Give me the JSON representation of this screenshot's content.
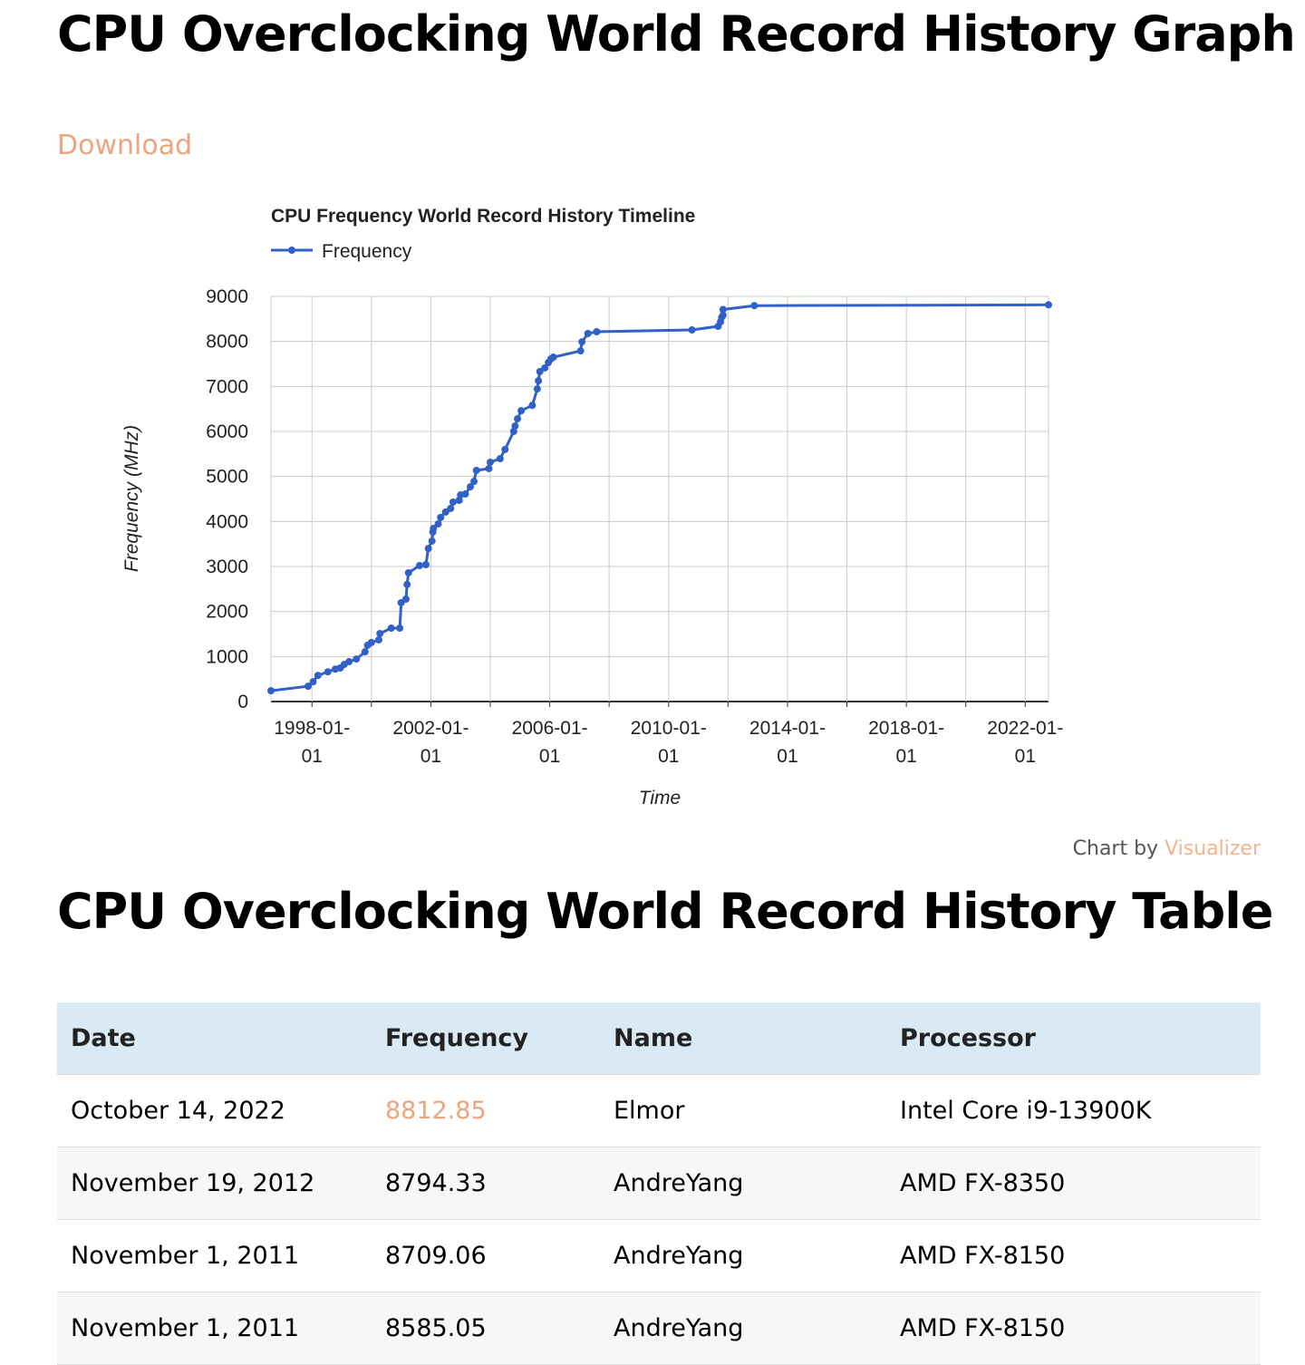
{
  "header": {
    "title": "CPU Overclocking World Record History Graph",
    "download": "Download"
  },
  "chart_data": {
    "type": "line",
    "title": "CPU Frequency World Record History Timeline",
    "x_label": "Time",
    "y_label": "Frequency (MHz)",
    "x": [
      "1996-08-15",
      "1997-11-15",
      "1998-01-15",
      "1998-03-15",
      "1998-07-15",
      "1998-10-15",
      "1998-12-15",
      "1999-02-01",
      "1999-04-01",
      "1999-07-01",
      "1999-10-15",
      "1999-11-15",
      "2000-01-01",
      "2000-04-01",
      "2000-04-15",
      "2000-09-01",
      "2000-12-15",
      "2001-01-01",
      "2001-03-01",
      "2001-03-15",
      "2001-04-01",
      "2001-08-15",
      "2001-11-01",
      "2001-12-01",
      "2002-01-15",
      "2002-01-25",
      "2002-02-01",
      "2002-04-01",
      "2002-05-01",
      "2002-07-01",
      "2002-09-01",
      "2002-10-01",
      "2002-12-15",
      "2003-01-01",
      "2003-03-01",
      "2003-05-01",
      "2003-06-15",
      "2003-07-15",
      "2003-12-15",
      "2004-01-01",
      "2004-05-01",
      "2004-07-01",
      "2004-10-15",
      "2004-11-01",
      "2004-12-01",
      "2005-01-15",
      "2005-06-01",
      "2005-08-01",
      "2005-08-15",
      "2005-09-01",
      "2005-11-01",
      "2005-12-15",
      "2006-01-15",
      "2006-02-15",
      "2007-01-15",
      "2007-02-01",
      "2007-04-15",
      "2007-08-01",
      "2010-10-15",
      "2011-09-01",
      "2011-10-01",
      "2011-10-15",
      "2011-11-01",
      "2011-11-01",
      "2012-11-19",
      "2022-10-14"
    ],
    "series": [
      {
        "name": "Frequency",
        "color": "#3060c8",
        "values": [
          240,
          340,
          440,
          580,
          660,
          720,
          745,
          825,
          885,
          945,
          1105,
          1250,
          1310,
          1370,
          1510,
          1630,
          1630,
          2195,
          2275,
          2600,
          2860,
          3020,
          3040,
          3400,
          3565,
          3765,
          3845,
          3945,
          4090,
          4210,
          4290,
          4430,
          4470,
          4590,
          4610,
          4770,
          4890,
          5135,
          5175,
          5315,
          5395,
          5600,
          6000,
          6120,
          6280,
          6460,
          6580,
          6945,
          7125,
          7330,
          7410,
          7530,
          7610,
          7650,
          7790,
          7990,
          8175,
          8215,
          8255,
          8335,
          8435,
          8535,
          8585.05,
          8709.06,
          8794.33,
          8812.85
        ]
      }
    ],
    "xlim": [
      "1996-08-15",
      "2022-10-14"
    ],
    "xticks": [
      "1998-01-01",
      "2002-01-01",
      "2006-01-01",
      "2010-01-01",
      "2014-01-01",
      "2018-01-01",
      "2022-01-01"
    ],
    "xminorticks": [
      "2000-01-01",
      "2004-01-01",
      "2008-01-01",
      "2012-01-01",
      "2016-01-01",
      "2020-01-01"
    ],
    "ylim": [
      0,
      9000
    ],
    "yticks": [
      0,
      1000,
      2000,
      3000,
      4000,
      5000,
      6000,
      7000,
      8000,
      9000
    ],
    "grid": true,
    "legend": "top-left"
  },
  "credit": {
    "prefix": "Chart by",
    "link": "Visualizer"
  },
  "table_title": "CPU Overclocking World Record History Table",
  "table": {
    "columns": [
      "Date",
      "Frequency",
      "Name",
      "Processor"
    ],
    "rows": [
      [
        "October 14, 2022",
        "8812.85",
        "Elmor",
        "Intel Core i9-13900K"
      ],
      [
        "November 19, 2012",
        "8794.33",
        "AndreYang",
        "AMD FX-8350"
      ],
      [
        "November 1, 2011",
        "8709.06",
        "AndreYang",
        "AMD FX-8150"
      ],
      [
        "November 1, 2011",
        "8585.05",
        "AndreYang",
        "AMD FX-8150"
      ]
    ]
  }
}
